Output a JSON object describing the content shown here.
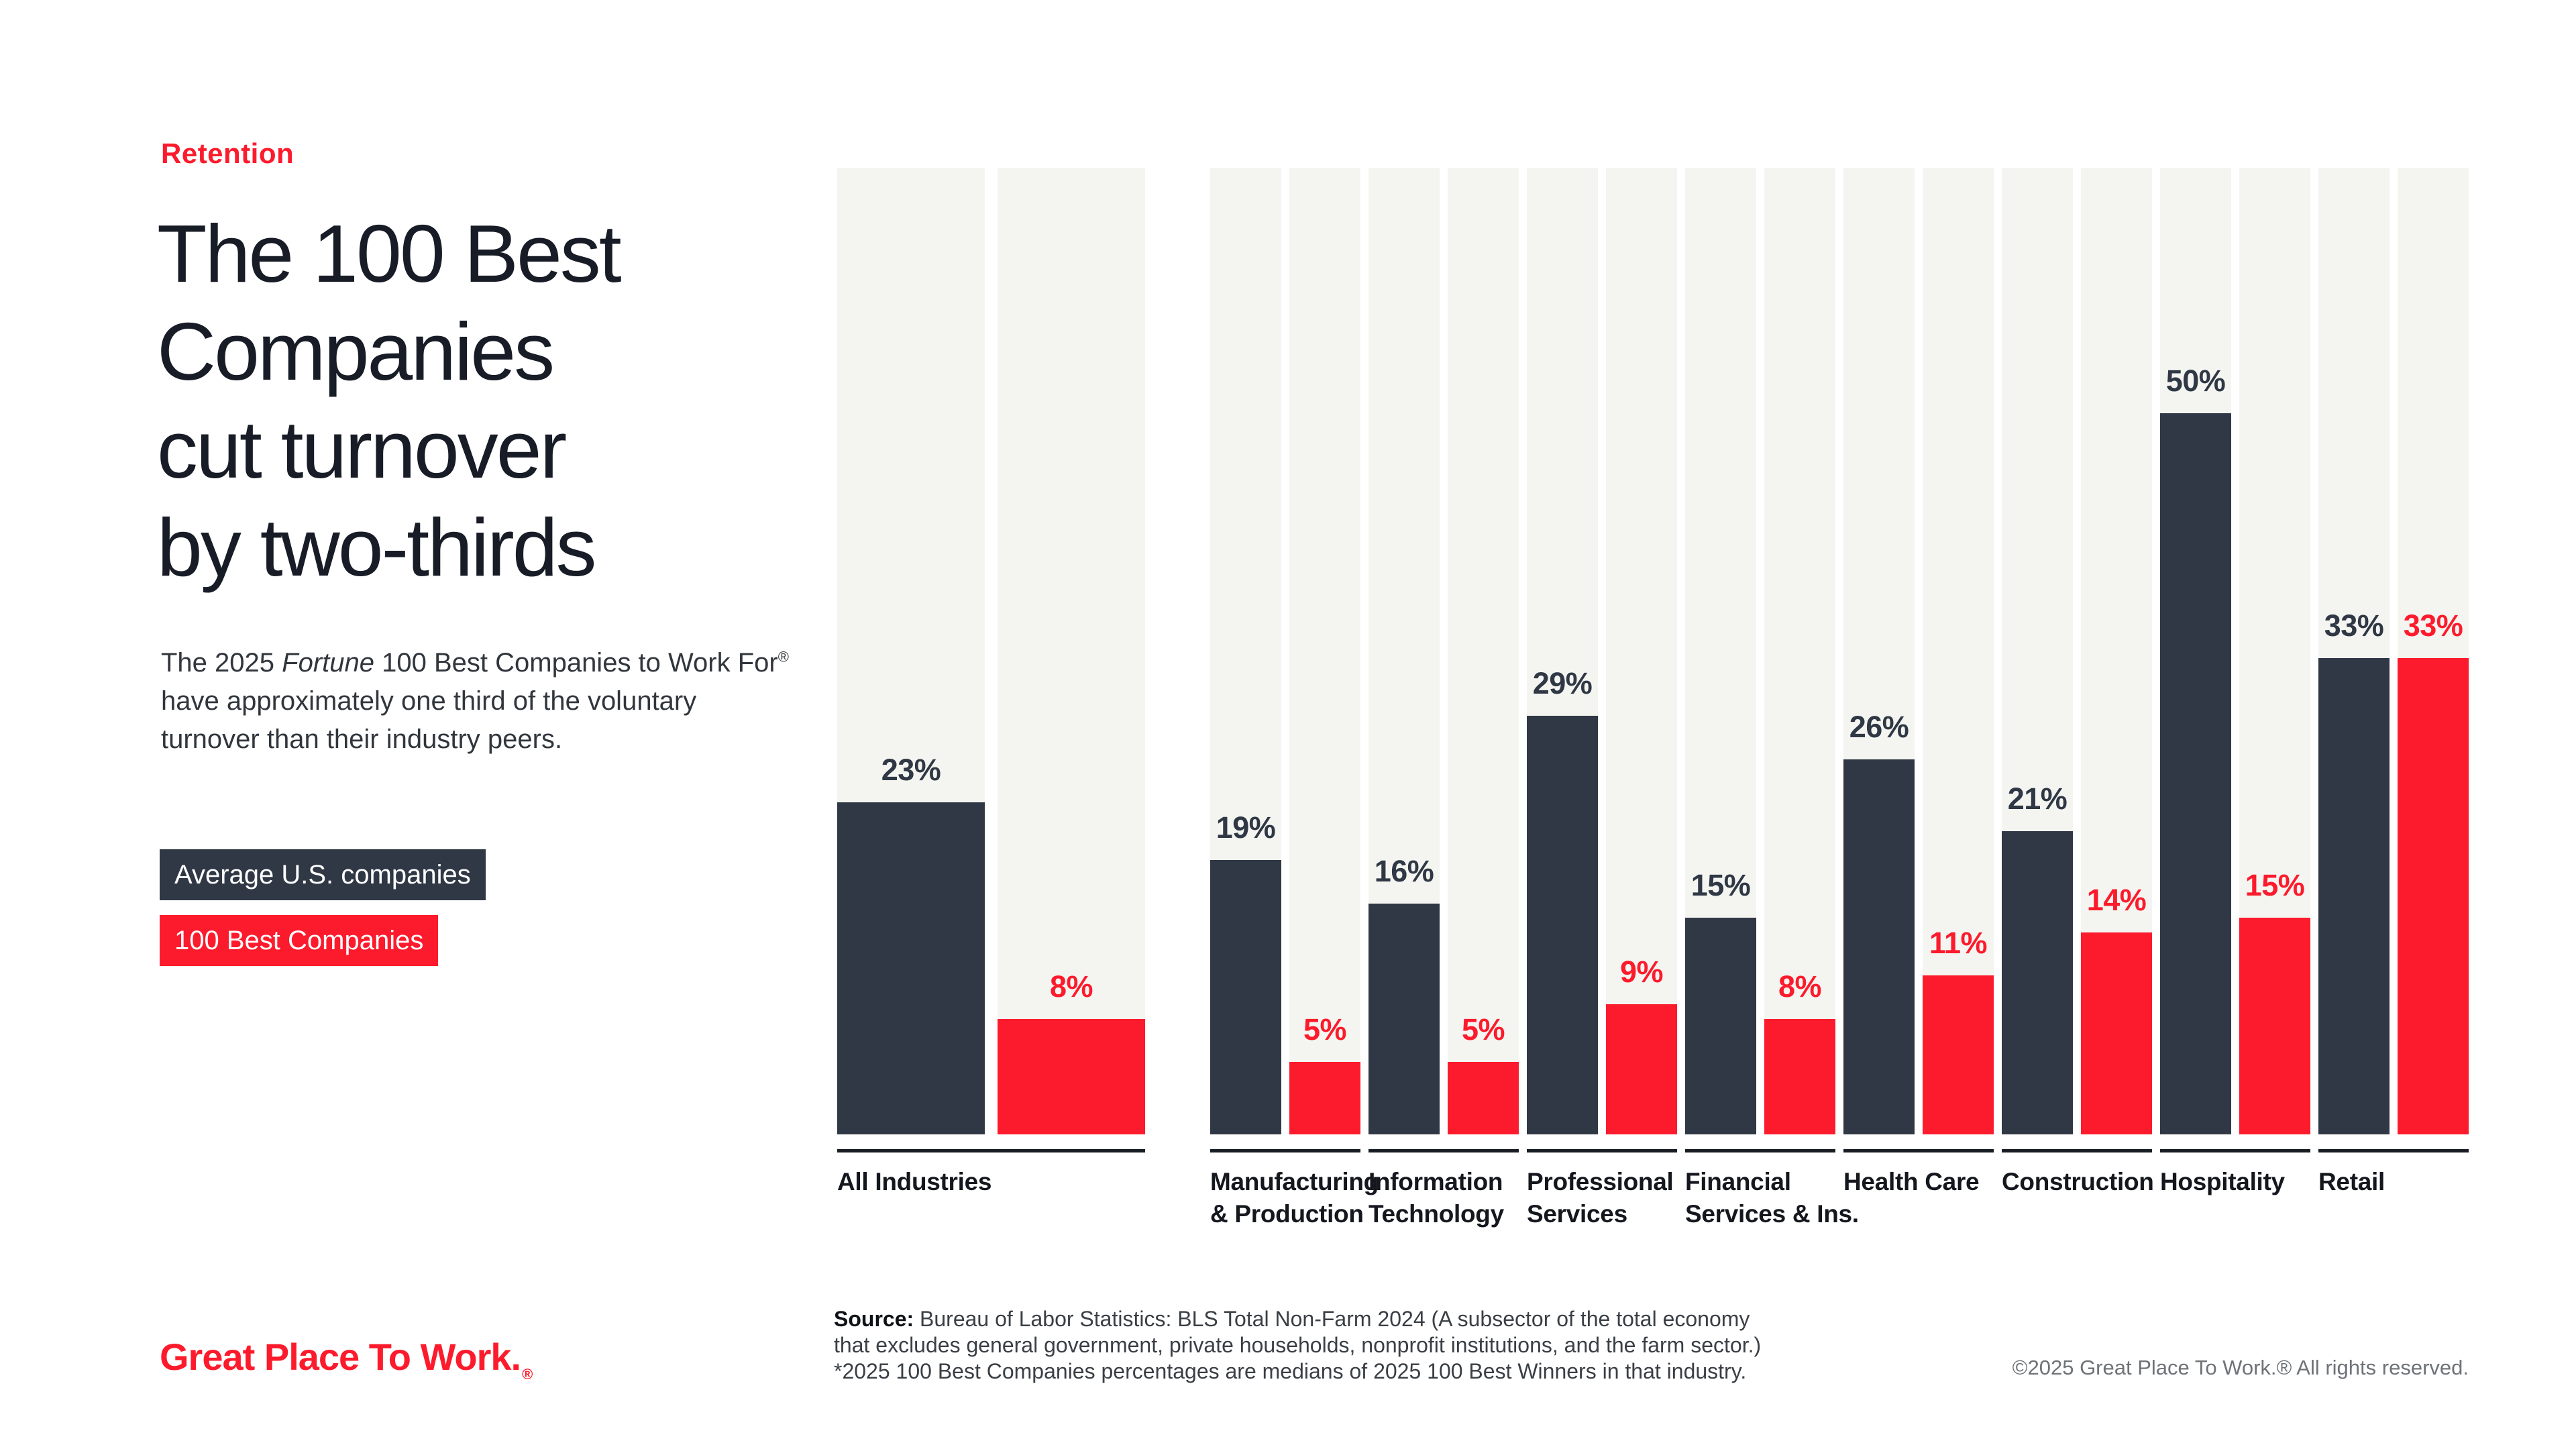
{
  "colors": {
    "brand_red": "#FC1B2C",
    "bar_dark": "#2F3844",
    "bar_track": "#F4F5F1",
    "title_ink": "#181C26",
    "copyright_gray": "#6E7378"
  },
  "header": {
    "eyebrow": "Retention",
    "title_lines": [
      "The 100 Best",
      "Companies",
      "cut turnover",
      "by two-thirds"
    ]
  },
  "intro": {
    "p1": "The 2025 ",
    "fortune": "Fortune",
    "p2": " 100 Best Companies to Work For",
    "reg": "®",
    "p3": " have approximately one third of the voluntary turnover than their industry peers."
  },
  "legend": {
    "avg_label": "Average U.S. companies",
    "best_label": "100 Best Companies"
  },
  "chart_data": {
    "type": "bar",
    "title": "The 100 Best Companies cut turnover by two-thirds",
    "unit": "%",
    "grid": false,
    "legend_position": "left",
    "ylim": [
      0,
      67
    ],
    "series_names": [
      "Average U.S. companies",
      "100 Best Companies"
    ],
    "categories": [
      "All Industries",
      "Manufacturing & Production",
      "Information Technology",
      "Professional Services",
      "Financial Services & Ins.",
      "Health Care",
      "Construction",
      "Hospitality",
      "Retail"
    ],
    "groups": [
      {
        "category": "All Industries",
        "label_lines": [
          "All Industries"
        ],
        "avg": 23,
        "best": 8
      },
      {
        "category": "Manufacturing & Production",
        "label_lines": [
          "Manufacturing",
          "& Production"
        ],
        "avg": 19,
        "best": 5
      },
      {
        "category": "Information Technology",
        "label_lines": [
          "Information",
          "Technology"
        ],
        "avg": 16,
        "best": 5
      },
      {
        "category": "Professional Services",
        "label_lines": [
          "Professional",
          "Services"
        ],
        "avg": 29,
        "best": 9
      },
      {
        "category": "Financial Services & Ins.",
        "label_lines": [
          "Financial",
          "Services & Ins."
        ],
        "avg": 15,
        "best": 8
      },
      {
        "category": "Health Care",
        "label_lines": [
          "Health Care"
        ],
        "avg": 26,
        "best": 11
      },
      {
        "category": "Construction",
        "label_lines": [
          "Construction"
        ],
        "avg": 21,
        "best": 14
      },
      {
        "category": "Hospitality",
        "label_lines": [
          "Hospitality"
        ],
        "avg": 50,
        "best": 15
      },
      {
        "category": "Retail",
        "label_lines": [
          "Retail"
        ],
        "avg": 33,
        "best": 33
      }
    ]
  },
  "footer": {
    "source_label": "Source:",
    "line1": " Bureau of Labor Statistics: BLS Total Non-Farm 2024 (A subsector of the total economy",
    "line2": "that excludes general government, private households, nonprofit institutions, and the farm sector.)",
    "line3": "*2025 100 Best Companies percentages are medians of 2025 100 Best Winners in that industry."
  },
  "logo": {
    "text": "Great Place To Work.",
    "reg": "®"
  },
  "copyright": "©2025 Great Place To Work.® All rights reserved."
}
